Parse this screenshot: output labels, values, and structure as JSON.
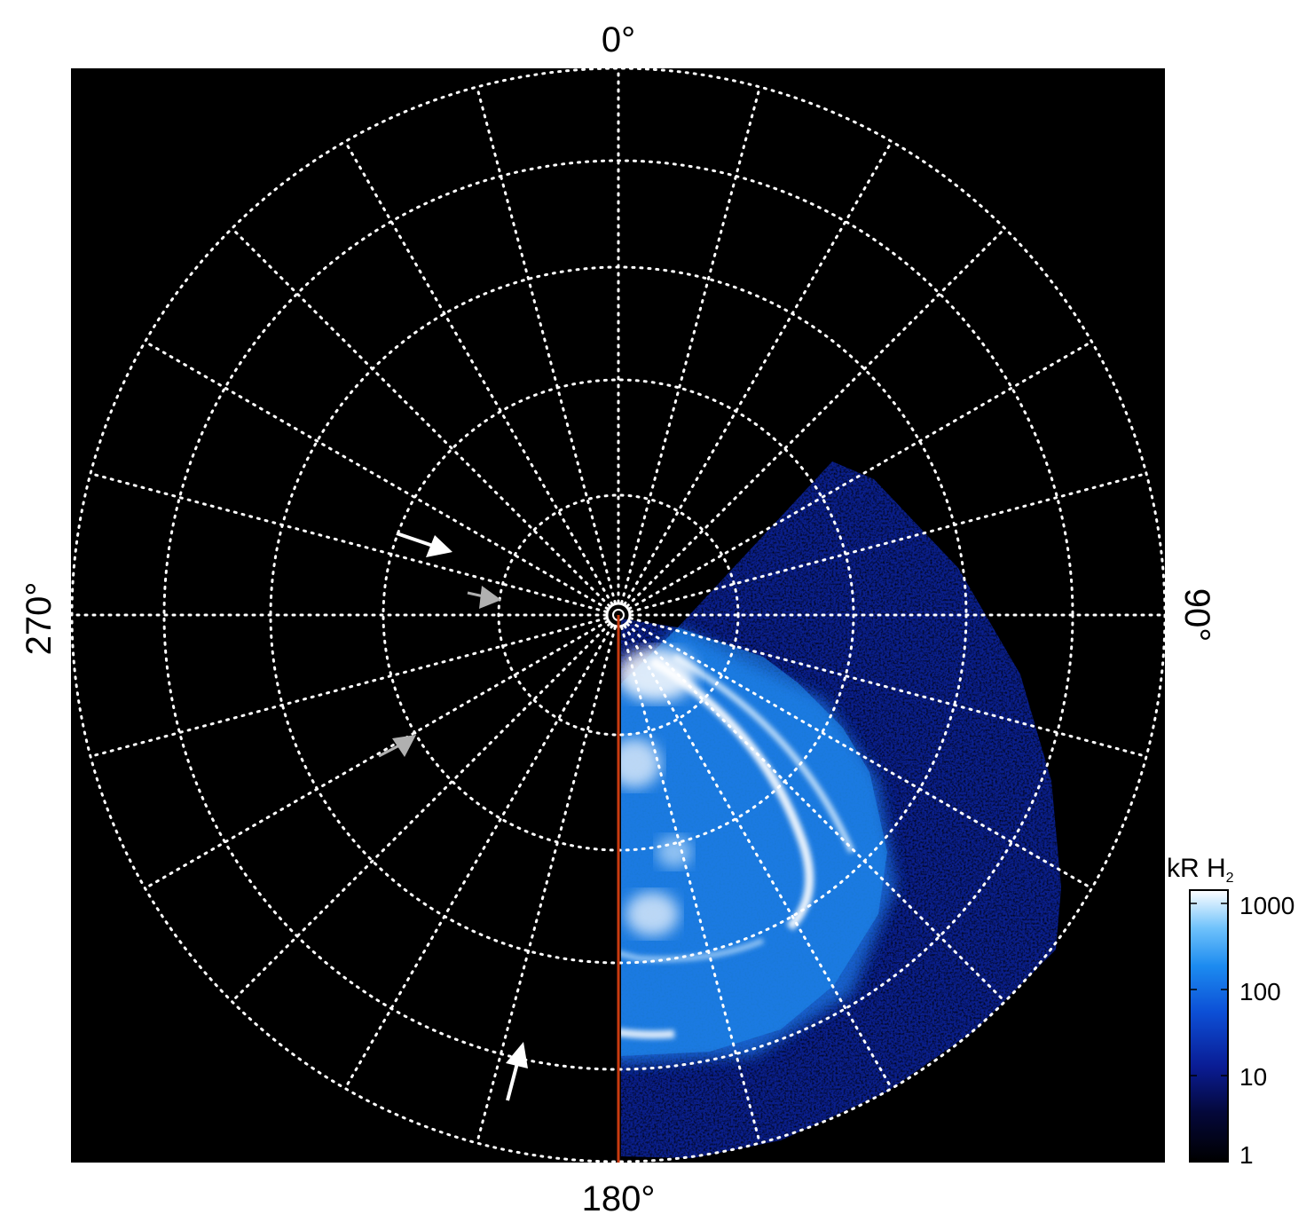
{
  "polar_plot": {
    "longitude_labels": {
      "top": "0°",
      "right": "90°",
      "bottom": "180°",
      "left": "270°"
    },
    "colorbar": {
      "title": "kR H",
      "title_subscript": "2",
      "tick_labels": [
        "1000",
        "100",
        "10",
        "1"
      ]
    },
    "colors": {
      "background": "#000000",
      "grid": "#ffffff",
      "meridian": "#c83a10",
      "emission_dim": "#0b1e8c",
      "emission_mid": "#1b7fe8",
      "emission_bright": "#ffffff"
    },
    "arrows": [
      {
        "color": "white"
      },
      {
        "color": "gray"
      },
      {
        "color": "gray"
      },
      {
        "color": "white"
      }
    ]
  }
}
